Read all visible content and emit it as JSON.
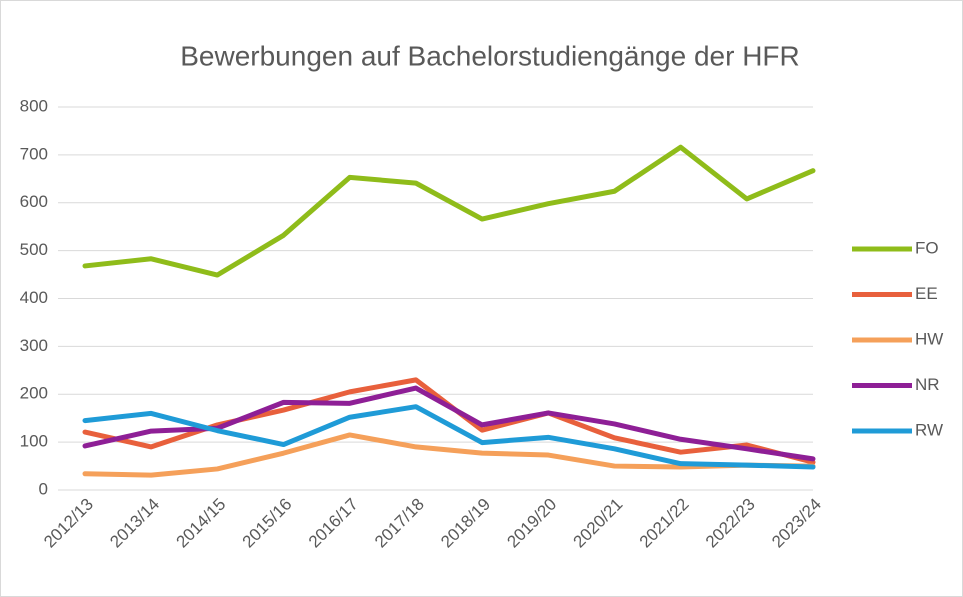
{
  "chart_data": {
    "type": "line",
    "title": "Bewerbungen auf Bachelorstudiengänge der HFR",
    "categories": [
      "2012/13",
      "2013/14",
      "2014/15",
      "2015/16",
      "2016/17",
      "2017/18",
      "2018/19",
      "2019/20",
      "2020/21",
      "2021/22",
      "2022/23",
      "2023/24"
    ],
    "series": [
      {
        "name": "FO",
        "color": "#8fbc1a",
        "values": [
          468,
          483,
          449,
          532,
          653,
          641,
          566,
          598,
          624,
          716,
          608,
          667
        ]
      },
      {
        "name": "EE",
        "color": "#e8603c",
        "values": [
          121,
          90,
          136,
          167,
          205,
          230,
          125,
          161,
          109,
          79,
          94,
          58
        ]
      },
      {
        "name": "HW",
        "color": "#f5a05a",
        "values": [
          34,
          31,
          44,
          77,
          115,
          90,
          77,
          73,
          50,
          48,
          52,
          50
        ]
      },
      {
        "name": "NR",
        "color": "#8e1f96",
        "values": [
          92,
          123,
          129,
          183,
          181,
          213,
          136,
          161,
          138,
          106,
          86,
          65
        ]
      },
      {
        "name": "RW",
        "color": "#1f9bd7",
        "values": [
          145,
          160,
          124,
          95,
          152,
          174,
          99,
          110,
          86,
          55,
          52,
          48
        ]
      }
    ],
    "ylim": [
      0,
      800
    ],
    "yticks": [
      0,
      100,
      200,
      300,
      400,
      500,
      600,
      700,
      800
    ],
    "grid": true,
    "legend": "right"
  }
}
